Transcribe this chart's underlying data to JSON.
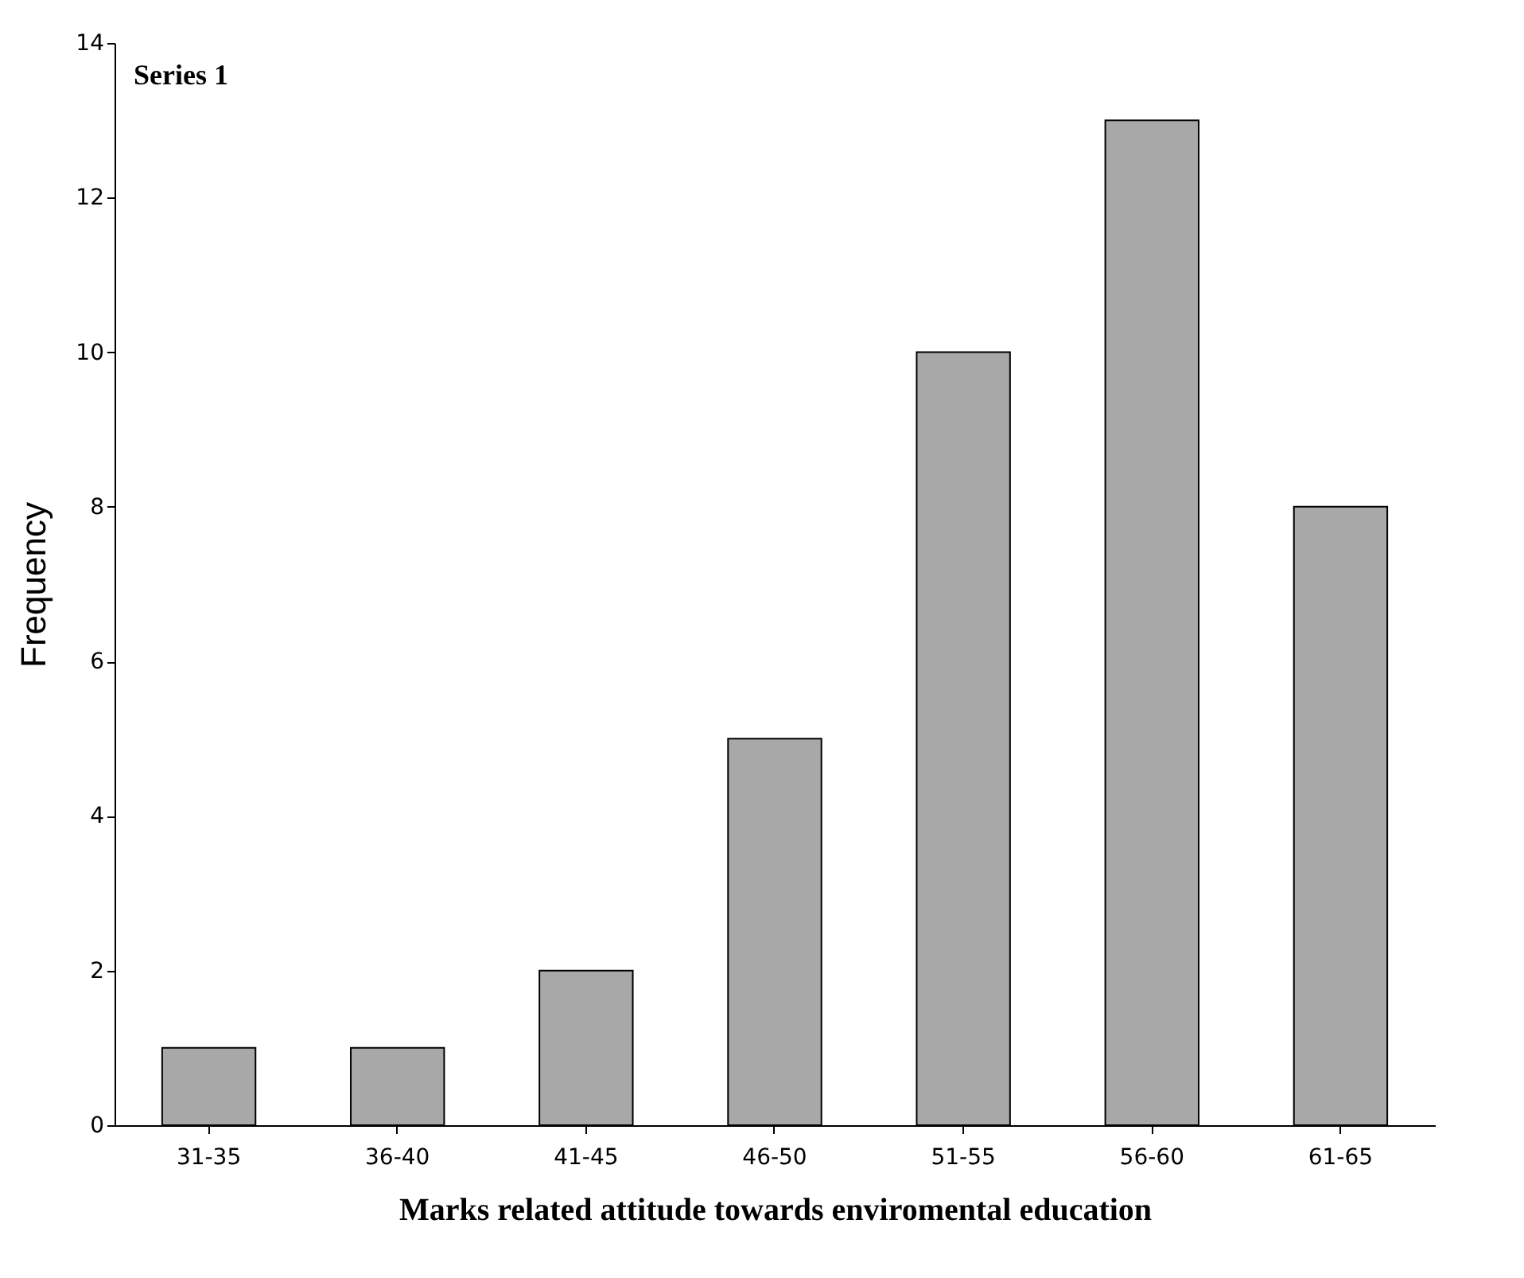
{
  "chart_data": {
    "type": "bar",
    "xlabel": "Marks related attitude towards enviromental education",
    "ylabel": "Frequency",
    "annotations": [
      "Series 1"
    ],
    "categories": [
      "31-35",
      "36-40",
      "41-45",
      "46-50",
      "51-55",
      "56-60",
      "61-65"
    ],
    "values": [
      1,
      1,
      2,
      5,
      10,
      13,
      8
    ],
    "color": "#a8a8a8",
    "ylim": [
      0,
      14
    ],
    "yticks": [
      0,
      2,
      4,
      6,
      8,
      10,
      12,
      14
    ],
    "grid": false
  }
}
